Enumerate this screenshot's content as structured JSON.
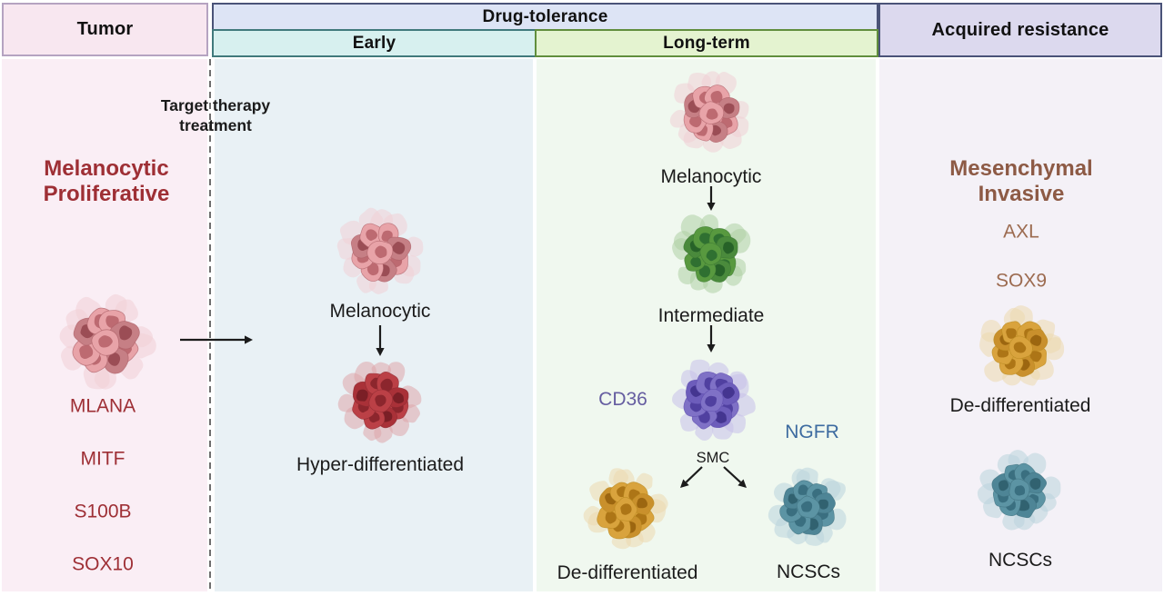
{
  "header": {
    "tumor": "Tumor",
    "drug_tolerance": "Drug-tolerance",
    "early": "Early",
    "long_term": "Long-term",
    "acquired_resistance": "Acquired resistance"
  },
  "tumor_column": {
    "treatment_label": "Target therapy\ntreatment",
    "state_title": "Melanocytic\nProliferative",
    "markers": [
      "MLANA",
      "MITF",
      "S100B",
      "SOX10"
    ]
  },
  "early_column": {
    "cluster1_label": "Melanocytic",
    "cluster2_label": "Hyper-differentiated"
  },
  "long_term_column": {
    "cluster1_label": "Melanocytic",
    "cluster2_label": "Intermediate",
    "marker_left": "CD36",
    "marker_right": "NGFR",
    "branch_label": "SMC",
    "branch_left_label": "De-differentiated",
    "branch_right_label": "NCSCs"
  },
  "acquired_column": {
    "state_title": "Mesenchymal\nInvasive",
    "markers": [
      "AXL",
      "SOX9"
    ],
    "cluster1_label": "De-differentiated",
    "cluster2_label": "NCSCs"
  },
  "colors": {
    "maroon": "#9e2f35",
    "brown_title": "#8d5a45",
    "brown": "#9c6b50",
    "purple": "#655da0",
    "blue": "#3d6ba0",
    "text": "#1b1b1b",
    "arrow": "#1b1b1b",
    "dashed": "#6f6f6f",
    "tumor_header_bg": "#f8e7f0",
    "tumor_header_border": "#b5a3c1",
    "dt_header_bg": "#dde4f5",
    "dt_header_border": "#4a5378",
    "early_header_bg": "#d7f0ef",
    "early_header_border": "#417a7c",
    "long_header_bg": "#e4f3d0",
    "long_header_border": "#618e3d",
    "acq_header_bg": "#dcd9ee",
    "acq_header_border": "#4a5378",
    "tumor_panel_bg": "#faeef5",
    "early_panel_bg": "#e9f1f5",
    "long_panel_bg": "#f0f8ef",
    "acq_panel_bg": "#f4f1f7"
  },
  "cluster_palettes": {
    "melanocytic": {
      "halo": "#f0cfd6",
      "body": "#e8a3a8",
      "dark": "#c67f85",
      "nucleus": "#bd6a71",
      "dark_nucleus": "#9b4d55",
      "stroke": "#ad5f66"
    },
    "hyper_differentiated": {
      "halo": "#dfa6aa",
      "body": "#bb4046",
      "dark": "#a93138",
      "nucleus": "#8c262d",
      "dark_nucleus": "#7b1f26",
      "stroke": "#8c2a31"
    },
    "intermediate": {
      "halo": "#aecfa4",
      "body": "#58993f",
      "dark": "#4a8a3c",
      "nucleus": "#2f7031",
      "dark_nucleus": "#276228",
      "stroke": "#3a7632"
    },
    "cd36_state": {
      "halo": "#c7c0e9",
      "body": "#7f71c6",
      "dark": "#6d5dbb",
      "nucleus": "#5040a0",
      "dark_nucleus": "#443590",
      "stroke": "#5c4cad"
    },
    "de_differentiated": {
      "halo": "#ecd9af",
      "body": "#d9a33d",
      "dark": "#c9902c",
      "nucleus": "#ad7516",
      "dark_nucleus": "#9c6610",
      "stroke": "#b8891f"
    },
    "ncsc": {
      "halo": "#bad4dc",
      "body": "#5c94a4",
      "dark": "#4e8596",
      "nucleus": "#3a6f80",
      "dark_nucleus": "#316270",
      "stroke": "#3f6f7d"
    }
  }
}
